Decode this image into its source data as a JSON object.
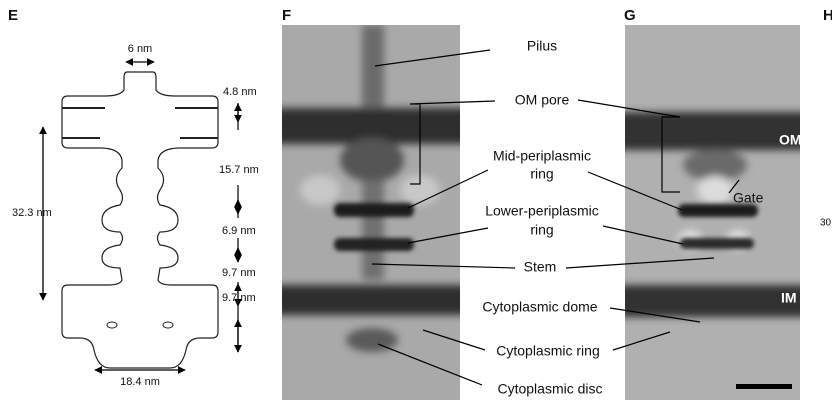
{
  "panels": {
    "e": "E",
    "f": "F",
    "g": "G",
    "h": "H"
  },
  "dimensions": {
    "top_width": "6 nm",
    "cap_height": "4.8 nm",
    "upper_height": "15.7 nm",
    "total_height": "32.3 nm",
    "mid_height": "6.9 nm",
    "lower_height": "9.7 nm",
    "base_height": "9.7 nm",
    "base_width": "18.4 nm"
  },
  "annotations": {
    "pilus": "Pilus",
    "om_pore": "OM pore",
    "mid_ring": [
      "Mid-periplasmic",
      "ring"
    ],
    "lower_ring": [
      "Lower-periplasmic",
      "ring"
    ],
    "stem": "Stem",
    "dome": "Cytoplasmic dome",
    "cyto_ring": "Cytoplasmic ring",
    "cyto_disc": "Cytoplasmic disc"
  },
  "membranes": {
    "om": "OM",
    "im": "IM"
  },
  "gate": "Gate",
  "axis_fragment": "30"
}
